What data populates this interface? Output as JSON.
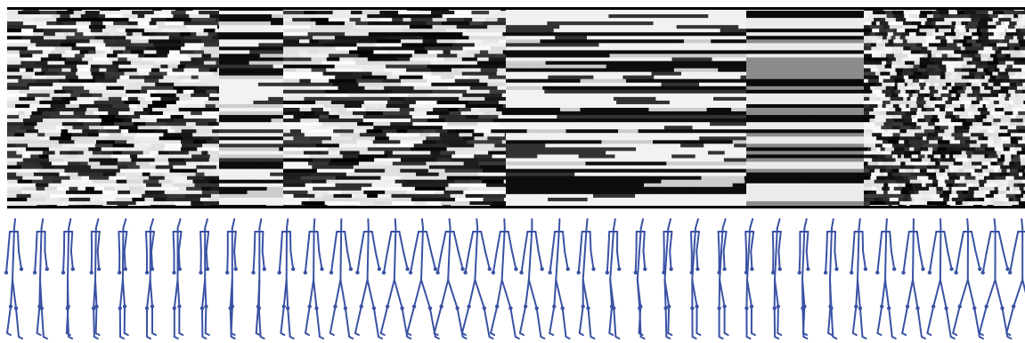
{
  "figure": {
    "panels": [
      "activation-heatmap",
      "pose-sequence"
    ]
  },
  "chart_data": {
    "type": "heatmap",
    "title": "",
    "xlabel": "",
    "ylabel": "",
    "colormap": "grayscale",
    "num_rows": 56,
    "segments": [
      {
        "label": "",
        "pattern": "dashed"
      },
      {
        "label": "",
        "pattern": "banded"
      },
      {
        "label": "",
        "pattern": "mottled"
      },
      {
        "label": "",
        "pattern": "banded"
      },
      {
        "label": "",
        "pattern": "flat-bands"
      },
      {
        "label": "",
        "pattern": "dotted"
      }
    ]
  },
  "pose_sequence": {
    "figure_count": 38,
    "stroke_color": "#3a52a3",
    "frames": [
      {
        "phase": 0.0
      },
      {
        "phase": 0.3
      },
      {
        "phase": 0.6
      },
      {
        "phase": 0.9
      },
      {
        "phase": 1.2
      },
      {
        "phase": 1.5
      },
      {
        "phase": 1.8
      },
      {
        "phase": 2.1
      },
      {
        "phase": 2.4
      },
      {
        "phase": 2.7
      },
      {
        "phase": 3.0
      },
      {
        "phase": 3.3
      },
      {
        "phase": 3.6
      },
      {
        "phase": 3.9
      },
      {
        "phase": 4.2
      },
      {
        "phase": 4.5
      },
      {
        "phase": 4.8
      },
      {
        "phase": 5.1
      },
      {
        "phase": 5.4
      },
      {
        "phase": 5.7
      },
      {
        "phase": 6.0
      },
      {
        "phase": 6.3
      },
      {
        "phase": 6.6
      },
      {
        "phase": 6.9
      },
      {
        "phase": 7.2
      },
      {
        "phase": 7.5
      },
      {
        "phase": 7.8
      },
      {
        "phase": 8.1
      },
      {
        "phase": 8.4
      },
      {
        "phase": 8.7
      },
      {
        "phase": 9.0
      },
      {
        "phase": 9.3
      },
      {
        "phase": 9.6
      },
      {
        "phase": 9.9
      },
      {
        "phase": 10.2
      },
      {
        "phase": 10.5
      },
      {
        "phase": 10.8
      },
      {
        "phase": 11.1
      }
    ]
  }
}
